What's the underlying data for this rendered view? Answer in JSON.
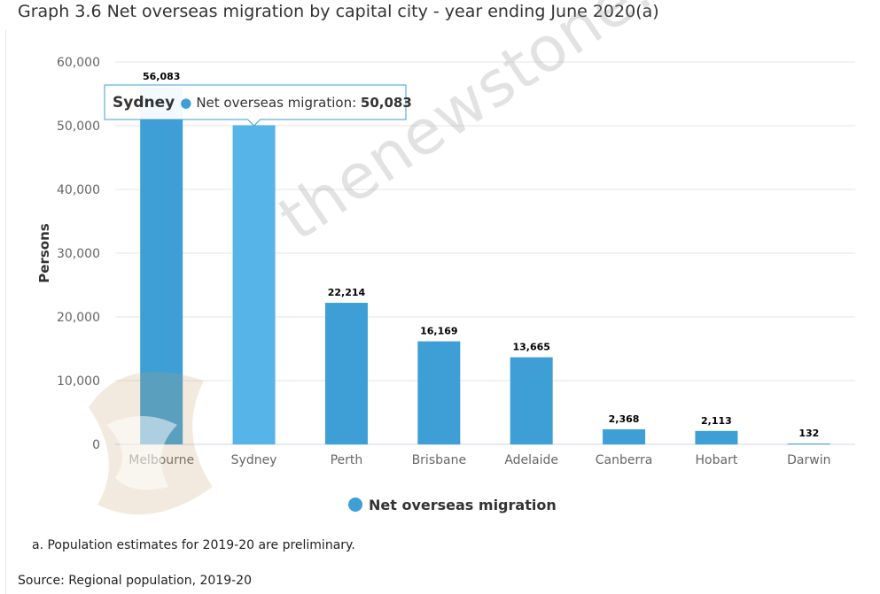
{
  "title": "Graph 3.6 Net overseas migration by capital city - year ending June 2020(a)",
  "footnote": "a. Population estimates for 2019-20 are preliminary.",
  "source": "Source: Regional population, 2019-20",
  "watermark": {
    "text": "thenewstone.com"
  },
  "tooltip": {
    "category": "Sydney",
    "series_label": "Net overseas migration: ",
    "value_text": "50,083"
  },
  "colors": {
    "bar": "#3d9fd6",
    "bar_highlight": "#56b4e9",
    "tooltip_border": "#3d9fd6",
    "grid": "#e6e6e6",
    "text": "#333333"
  },
  "chart_data": {
    "type": "bar",
    "categories": [
      "Melbourne",
      "Sydney",
      "Perth",
      "Brisbane",
      "Adelaide",
      "Canberra",
      "Hobart",
      "Darwin"
    ],
    "values": [
      56083,
      50083,
      22214,
      16169,
      13665,
      2368,
      2113,
      132
    ],
    "data_labels": [
      "56,083",
      "50,083",
      "22,214",
      "16,169",
      "13,665",
      "2,368",
      "2,113",
      "132"
    ],
    "highlighted_index": 1,
    "series": [
      {
        "name": "Net overseas migration",
        "values": [
          56083,
          50083,
          22214,
          16169,
          13665,
          2368,
          2113,
          132
        ]
      }
    ],
    "ylabel": "Persons",
    "xlabel": "",
    "ylim": [
      0,
      60000
    ],
    "yticks": [
      0,
      10000,
      20000,
      30000,
      40000,
      50000,
      60000
    ],
    "ytick_labels": [
      "0",
      "10,000",
      "20,000",
      "30,000",
      "40,000",
      "50,000",
      "60,000"
    ],
    "grid": true,
    "legend": {
      "position": "bottom-center",
      "label": "Net overseas migration"
    }
  }
}
